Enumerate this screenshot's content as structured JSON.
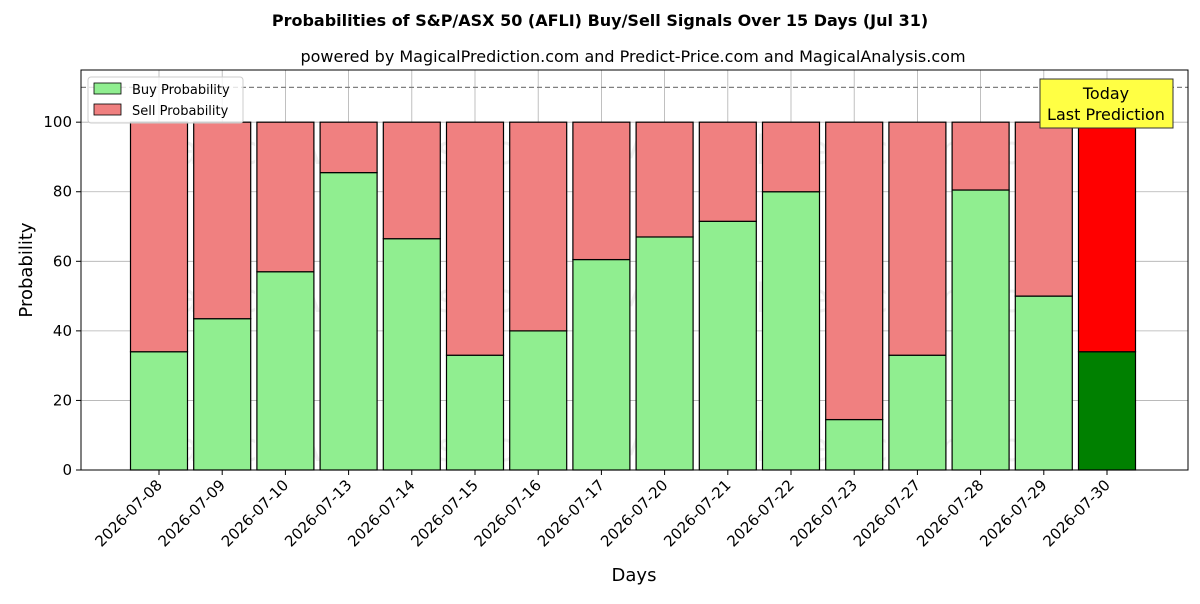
{
  "chart_data": {
    "type": "bar",
    "stacked": true,
    "title": "Probabilities of S&P/ASX 50 (AFLI) Buy/Sell Signals Over 15 Days (Jul 31)",
    "subtitle": "powered by MagicalPrediction.com and Predict-Price.com and MagicalAnalysis.com",
    "xlabel": "Days",
    "ylabel": "Probability",
    "ylim": [
      0,
      115
    ],
    "yticks": [
      0,
      20,
      40,
      60,
      80,
      100
    ],
    "grid": true,
    "legend_position": "top-left",
    "reference_line": 110,
    "categories": [
      "2026-07-08",
      "2026-07-09",
      "2026-07-10",
      "2026-07-13",
      "2026-07-14",
      "2026-07-15",
      "2026-07-16",
      "2026-07-17",
      "2026-07-20",
      "2026-07-21",
      "2026-07-22",
      "2026-07-23",
      "2026-07-27",
      "2026-07-28",
      "2026-07-29",
      "2026-07-30"
    ],
    "series": [
      {
        "name": "Buy Probability",
        "color": "#90ee90",
        "highlight_color": "#008000",
        "values": [
          34,
          43.5,
          57,
          85.5,
          66.5,
          33,
          40,
          60.5,
          67,
          71.5,
          80,
          14.5,
          33,
          80.5,
          50,
          34
        ]
      },
      {
        "name": "Sell Probability",
        "color": "#f08080",
        "highlight_color": "#ff0000",
        "values": [
          66,
          56.5,
          43,
          14.5,
          33.5,
          67,
          60,
          39.5,
          33,
          28.5,
          20,
          85.5,
          67,
          19.5,
          50,
          66
        ]
      }
    ],
    "highlight_index": 15,
    "annotation": {
      "line1": "Today",
      "line2": "Last Prediction",
      "background": "#ffff44"
    },
    "watermarks": [
      "MagicalAnalysis.com",
      "MagicalPrediction.com"
    ]
  }
}
